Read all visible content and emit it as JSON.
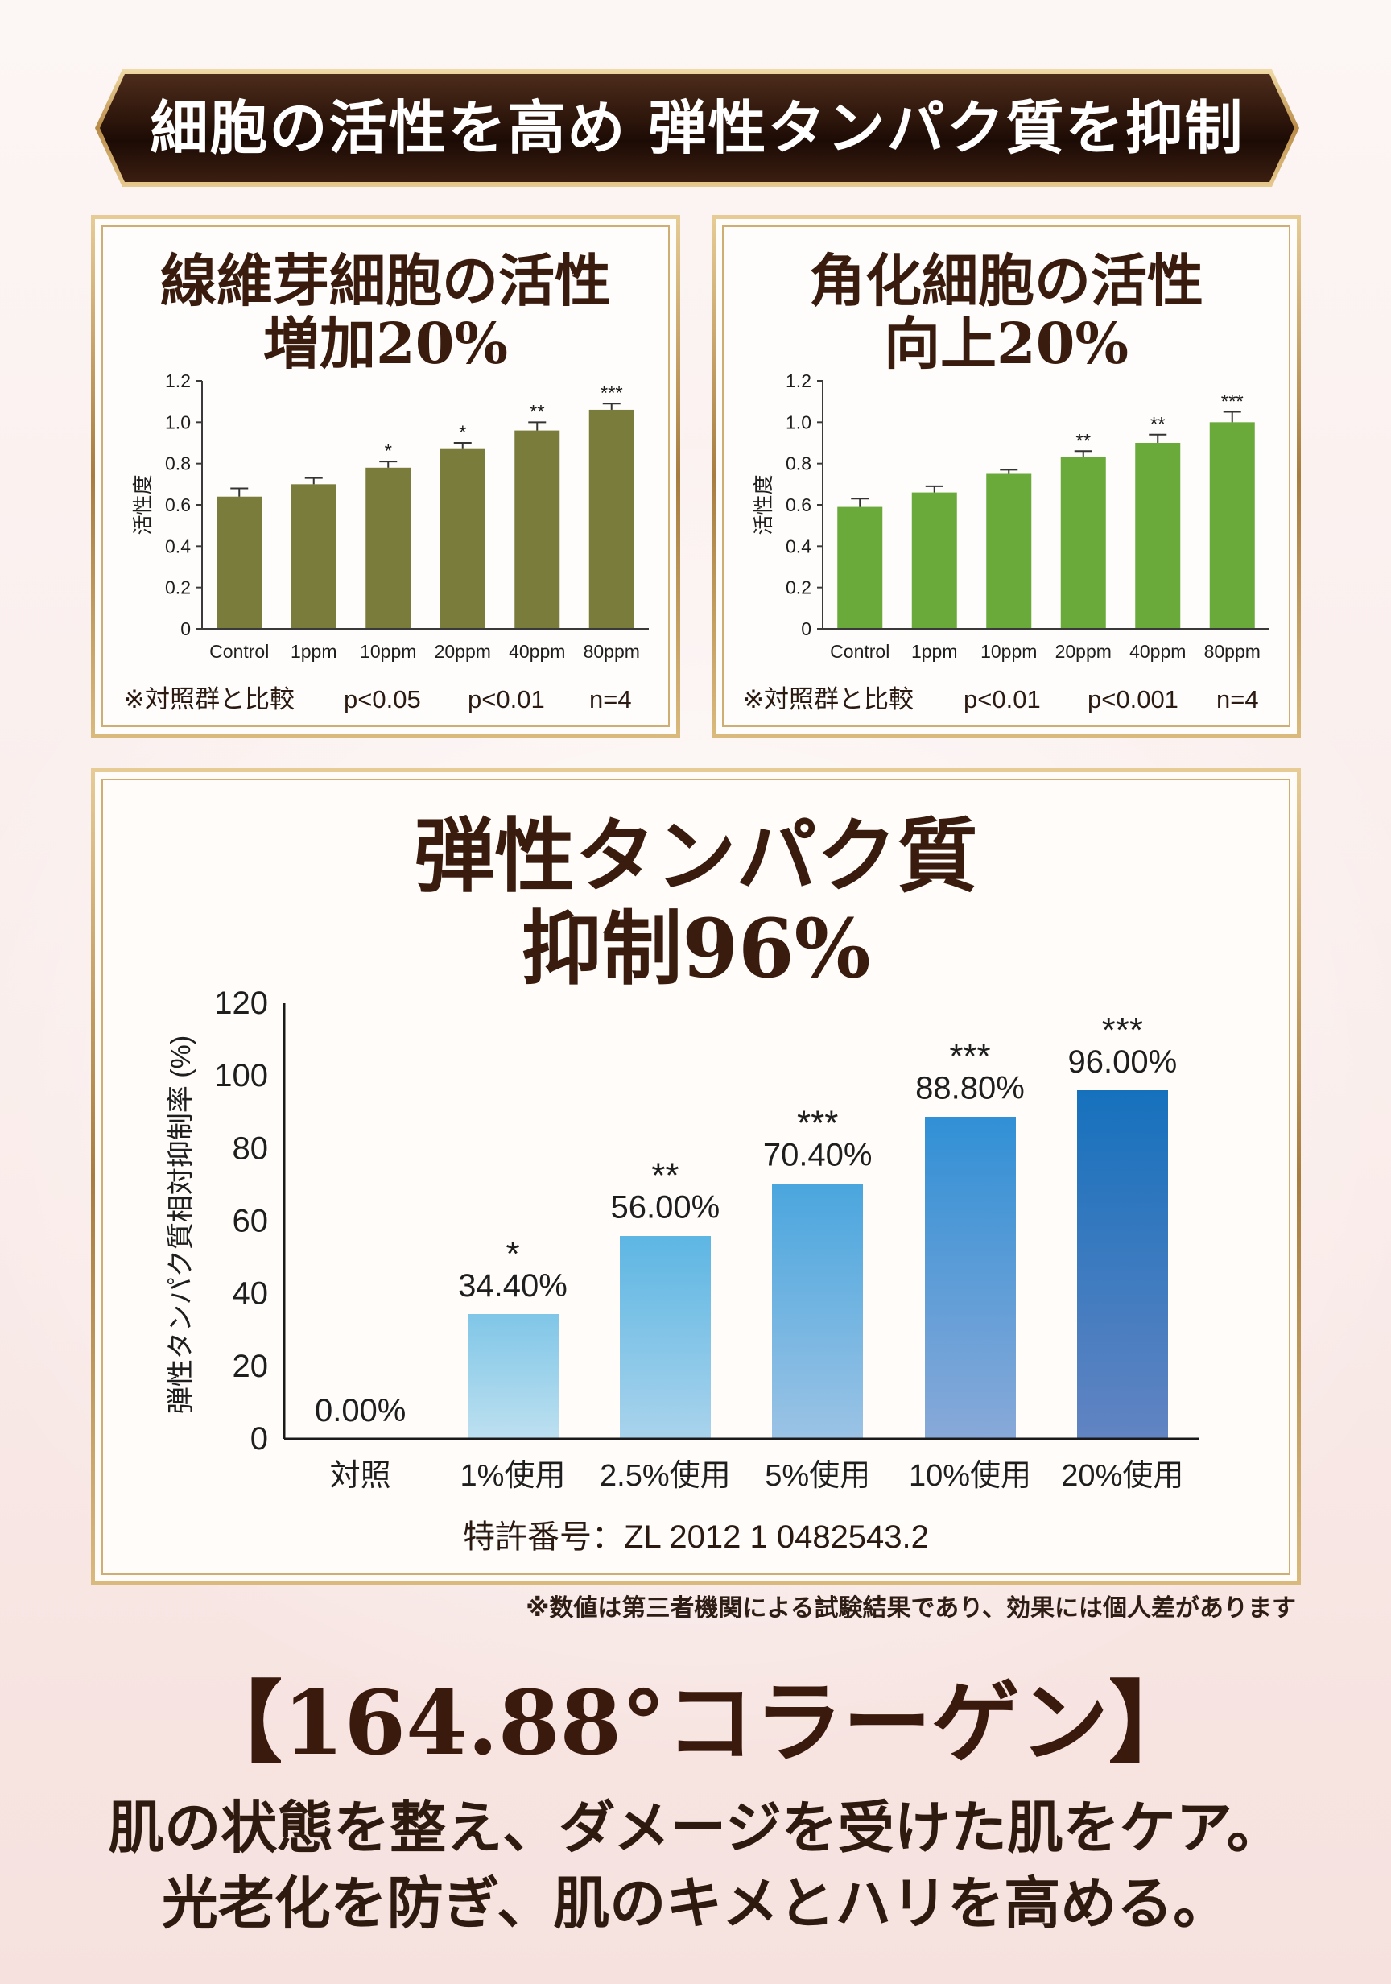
{
  "banner": {
    "title": "細胞の活性を高め 弾性タンパク質を抑制"
  },
  "fibroblast_card": {
    "title_line1": "線維芽細胞の活性",
    "title_line2": "増加20%",
    "comparison_note": "※対照群と比較",
    "p_value_1": "p<0.05",
    "p_value_2": "p<0.01",
    "sample_size": "n=4"
  },
  "keratinocyte_card": {
    "title_line1": "角化細胞の活性",
    "title_line2": "向上20%",
    "comparison_note": "※対照群と比較",
    "p_value_1": "p<0.01",
    "p_value_2": "p<0.001",
    "sample_size": "n=4"
  },
  "elastin_card": {
    "title_line1": "弾性タンパク質",
    "title_line2": "抑制96%",
    "patent": "特許番号：ZL 2012 1 0482543.2"
  },
  "disclaimer": "※数値は第三者機関による試験結果であり、効果には個人差があります",
  "product": {
    "name": "【164.88°コラーゲン】",
    "line1": "肌の状態を整え、ダメージを受けた肌をケア。",
    "line2": "光老化を防ぎ、肌のキメとハリを高める。"
  },
  "theme": {
    "banner_color": "#2b140a",
    "gold_frame": "#c29a5c",
    "heading_color": "#3a1c0e"
  },
  "chart_data": [
    {
      "type": "bar",
      "categories": [
        "Control",
        "1ppm",
        "10ppm",
        "20ppm",
        "40ppm",
        "80ppm"
      ],
      "values": [
        0.64,
        0.7,
        0.78,
        0.87,
        0.96,
        1.06
      ],
      "errors": [
        0.04,
        0.03,
        0.03,
        0.03,
        0.04,
        0.03
      ],
      "significance": [
        "",
        "",
        "*",
        "*",
        "**",
        "***"
      ],
      "ylabel": "活性度",
      "ylim": [
        0,
        1.2
      ],
      "yticks": [
        "0",
        "0.2",
        "0.4",
        "0.6",
        "0.8",
        "1.0",
        "1.2"
      ],
      "grid": false,
      "color": "#7a7c3b"
    },
    {
      "type": "bar",
      "categories": [
        "Control",
        "1ppm",
        "10ppm",
        "20ppm",
        "40ppm",
        "80ppm"
      ],
      "values": [
        0.59,
        0.66,
        0.75,
        0.83,
        0.9,
        1.0
      ],
      "errors": [
        0.04,
        0.03,
        0.02,
        0.03,
        0.04,
        0.05
      ],
      "significance": [
        "",
        "",
        "",
        "**",
        "**",
        "***"
      ],
      "ylabel": "活性度",
      "ylim": [
        0,
        1.2
      ],
      "yticks": [
        "0",
        "0.2",
        "0.4",
        "0.6",
        "0.8",
        "1.0",
        "1.2"
      ],
      "grid": false,
      "color": "#6aaa3a"
    },
    {
      "type": "bar",
      "categories": [
        "対照",
        "1%使用",
        "2.5%使用",
        "5%使用",
        "10%使用",
        "20%使用"
      ],
      "values": [
        0,
        34.4,
        56.0,
        70.4,
        88.8,
        96.0
      ],
      "data_labels": [
        "0.00%",
        "34.40%",
        "56.00%",
        "70.40%",
        "88.80%",
        "96.00%"
      ],
      "significance": [
        "",
        "*",
        "**",
        "***",
        "***",
        "***"
      ],
      "ylabel": "弾性タンパク質相対抑制率 (%)",
      "ylim": [
        0,
        120
      ],
      "yticks": [
        "0",
        "20",
        "40",
        "60",
        "80",
        "100",
        "120"
      ],
      "grid": false,
      "colors": [
        {
          "top": "#80c6e7",
          "bottom": "#bde0f0"
        },
        {
          "top": "#80c6e7",
          "bottom": "#bde0f0"
        },
        {
          "top": "#5db6e3",
          "bottom": "#a9d3ec"
        },
        {
          "top": "#4aa6de",
          "bottom": "#9bc3e5"
        },
        {
          "top": "#3190d6",
          "bottom": "#88a9d8"
        },
        {
          "top": "#1671bd",
          "bottom": "#6284c2"
        }
      ]
    }
  ]
}
